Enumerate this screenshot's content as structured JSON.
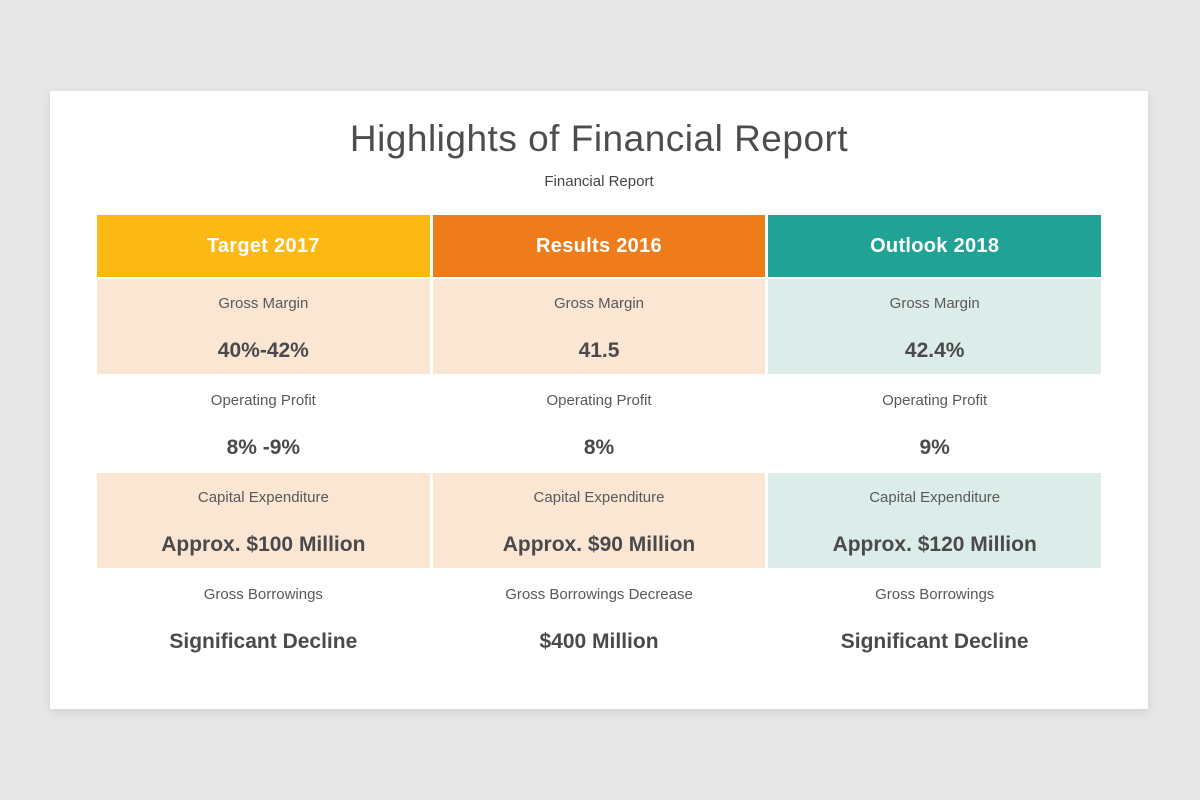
{
  "page": {
    "background_color": "#e8e7e8",
    "card_background_color": "#ffffff"
  },
  "header": {
    "title": "Highlights of Financial Report",
    "subtitle": "Financial Report",
    "title_color": "#4d4d4f"
  },
  "table": {
    "text_colors": {
      "label": "#58595b",
      "value": "#4a4a4c",
      "header_text": "#ffffff"
    },
    "columns": [
      {
        "header": "Target 2017",
        "header_color": "#fcb813",
        "tint_color": "#fae6d3",
        "rows": [
          {
            "label": "Gross Margin",
            "value": "40%-42%"
          },
          {
            "label": "Operating Profit",
            "value": "8% -9%"
          },
          {
            "label": "Capital Expenditure",
            "value": "Approx. $100 Million"
          },
          {
            "label": "Gross Borrowings",
            "value": "Significant Decline"
          }
        ]
      },
      {
        "header": "Results 2016",
        "header_color": "#ee7c1a",
        "tint_color": "#fae6d3",
        "rows": [
          {
            "label": "Gross Margin",
            "value": "41.5"
          },
          {
            "label": "Operating Profit",
            "value": "8%"
          },
          {
            "label": "Capital Expenditure",
            "value": "Approx. $90 Million"
          },
          {
            "label": "Gross Borrowings Decrease",
            "value": "$400 Million"
          }
        ]
      },
      {
        "header": "Outlook 2018",
        "header_color": "#20a394",
        "tint_color": "#dcece8",
        "rows": [
          {
            "label": "Gross Margin",
            "value": "42.4%"
          },
          {
            "label": "Operating Profit",
            "value": "9%"
          },
          {
            "label": "Capital Expenditure",
            "value": "Approx. $120 Million"
          },
          {
            "label": "Gross Borrowings",
            "value": "Significant Decline"
          }
        ]
      }
    ]
  },
  "chart_data": {
    "type": "table",
    "title": "Highlights of Financial Report",
    "columns": [
      "Target 2017",
      "Results 2016",
      "Outlook 2018"
    ],
    "row_metrics": [
      "Gross Margin",
      "Operating Profit",
      "Capital Expenditure",
      "Gross Borrowings"
    ],
    "values": [
      [
        "40%-42%",
        "41.5",
        "42.4%"
      ],
      [
        "8% -9%",
        "8%",
        "9%"
      ],
      [
        "Approx. $100 Million",
        "Approx. $90 Million",
        "Approx. $120 Million"
      ],
      [
        "Significant Decline",
        "$400 Million",
        "Significant Decline"
      ]
    ]
  }
}
